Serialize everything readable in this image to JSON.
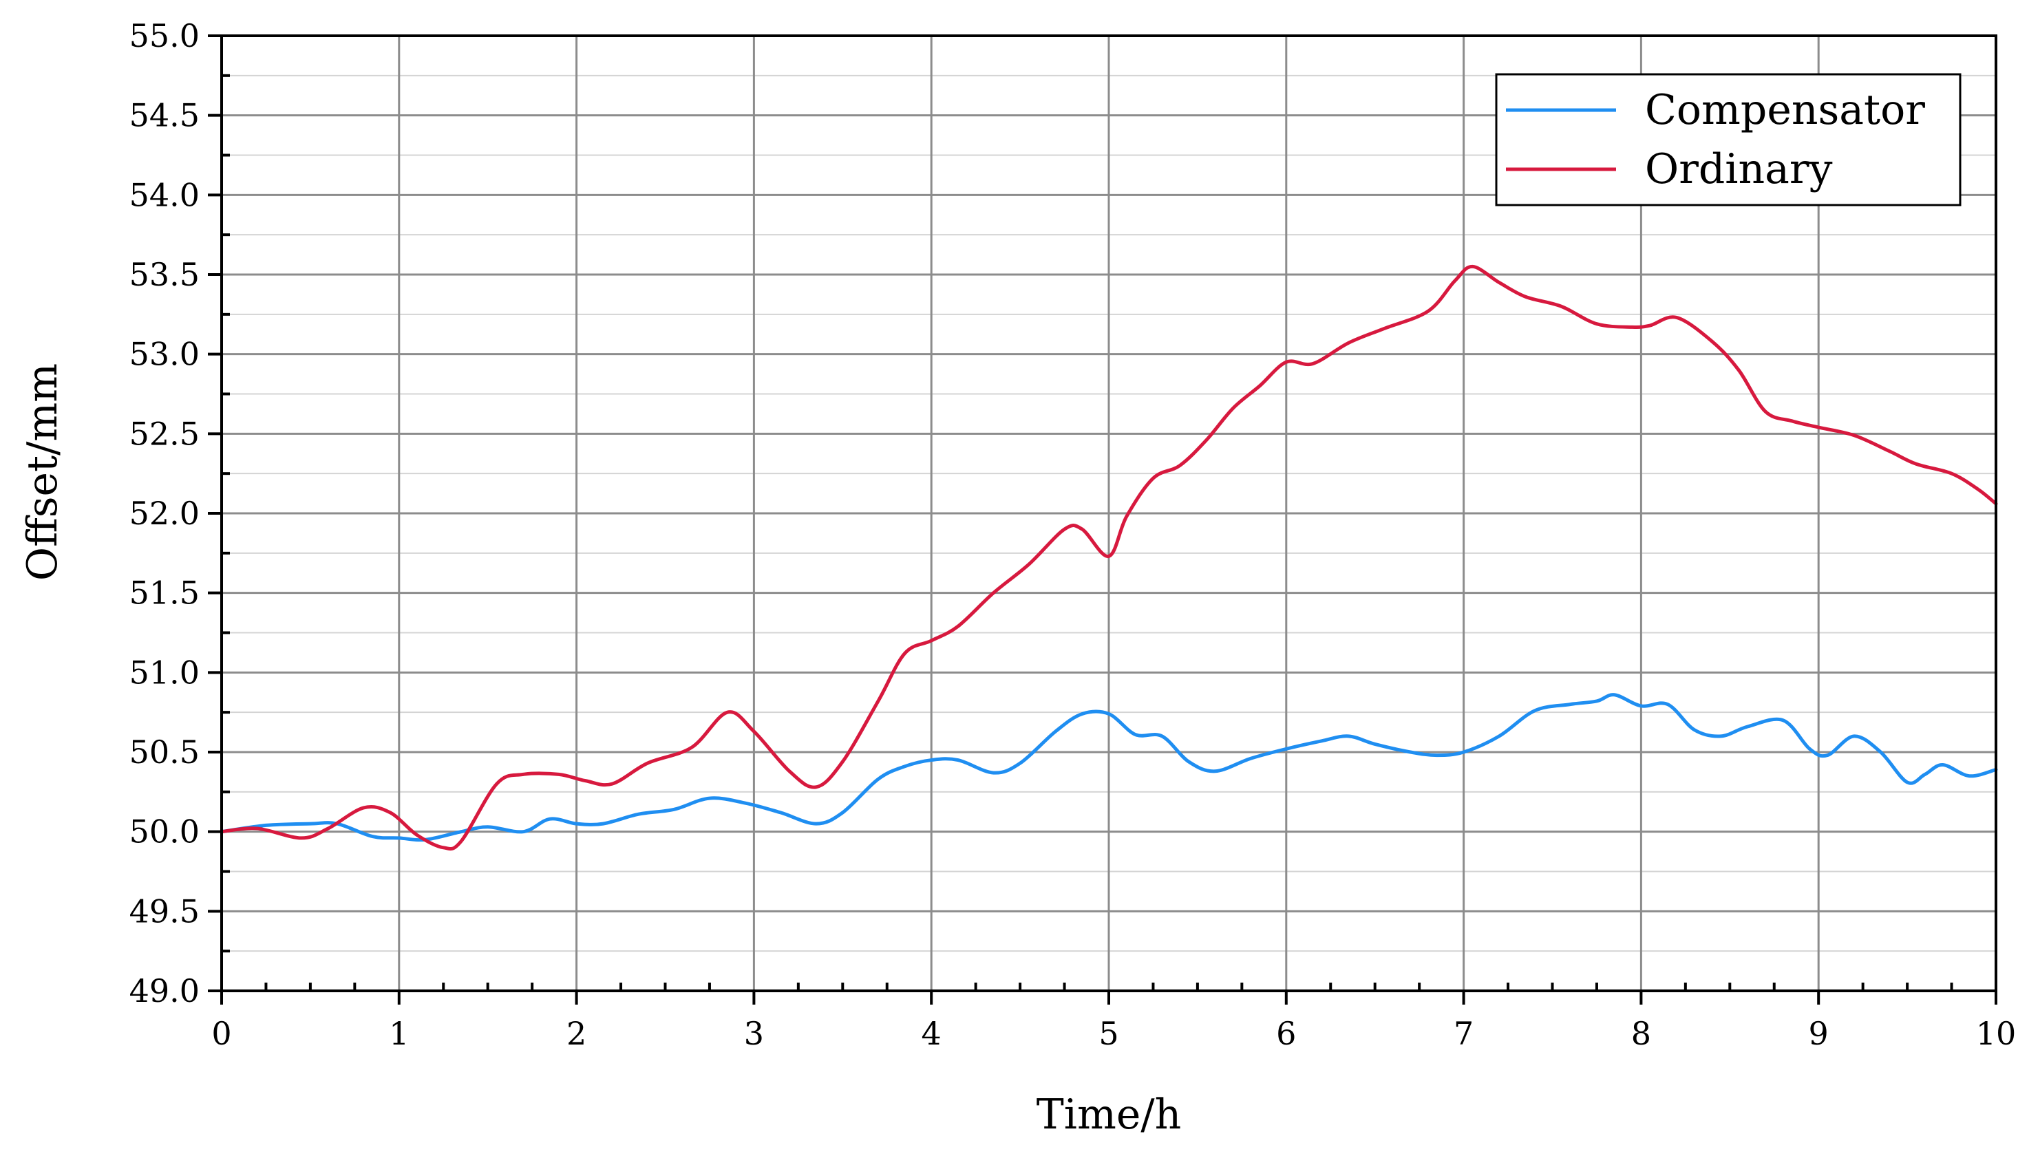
{
  "chart_data": {
    "type": "line",
    "title": "",
    "xlabel": "Time/h",
    "ylabel": "Offset/mm",
    "xlim": [
      0,
      10
    ],
    "ylim": [
      49.0,
      55.0
    ],
    "x_ticks": [
      0,
      1,
      2,
      3,
      4,
      5,
      6,
      7,
      8,
      9,
      10
    ],
    "x_tick_labels": [
      "0",
      "1",
      "2",
      "3",
      "4",
      "5",
      "6",
      "7",
      "8",
      "9",
      "10"
    ],
    "y_ticks": [
      49.0,
      49.5,
      50.0,
      50.5,
      51.0,
      51.5,
      52.0,
      52.5,
      53.0,
      53.5,
      54.0,
      54.5,
      55.0
    ],
    "y_tick_labels": [
      "49.0",
      "49.5",
      "50.0",
      "50.5",
      "51.0",
      "51.5",
      "52.0",
      "52.5",
      "53.0",
      "53.5",
      "54.0",
      "54.5",
      "55.0"
    ],
    "grid": true,
    "legend_position": "top-right",
    "series": [
      {
        "name": "Compensator",
        "color": "#1f8ef1",
        "points": [
          [
            0,
            50.0
          ],
          [
            0.25,
            50.04
          ],
          [
            0.5,
            50.05
          ],
          [
            0.65,
            50.05
          ],
          [
            0.85,
            49.97
          ],
          [
            1.0,
            49.96
          ],
          [
            1.15,
            49.95
          ],
          [
            1.35,
            50.0
          ],
          [
            1.5,
            50.03
          ],
          [
            1.7,
            50.0
          ],
          [
            1.85,
            50.08
          ],
          [
            2.0,
            50.05
          ],
          [
            2.15,
            50.05
          ],
          [
            2.35,
            50.11
          ],
          [
            2.55,
            50.14
          ],
          [
            2.75,
            50.21
          ],
          [
            2.95,
            50.18
          ],
          [
            3.15,
            50.12
          ],
          [
            3.35,
            50.05
          ],
          [
            3.5,
            50.12
          ],
          [
            3.7,
            50.33
          ],
          [
            3.85,
            50.41
          ],
          [
            4.0,
            50.45
          ],
          [
            4.15,
            50.45
          ],
          [
            4.35,
            50.37
          ],
          [
            4.5,
            50.43
          ],
          [
            4.7,
            50.63
          ],
          [
            4.85,
            50.74
          ],
          [
            5.0,
            50.74
          ],
          [
            5.15,
            50.61
          ],
          [
            5.3,
            50.6
          ],
          [
            5.45,
            50.44
          ],
          [
            5.6,
            50.38
          ],
          [
            5.8,
            50.46
          ],
          [
            6.0,
            50.52
          ],
          [
            6.2,
            50.57
          ],
          [
            6.35,
            50.6
          ],
          [
            6.5,
            50.55
          ],
          [
            6.7,
            50.5
          ],
          [
            6.85,
            50.48
          ],
          [
            7.0,
            50.5
          ],
          [
            7.2,
            50.6
          ],
          [
            7.4,
            50.76
          ],
          [
            7.6,
            50.8
          ],
          [
            7.75,
            50.82
          ],
          [
            7.85,
            50.86
          ],
          [
            8.0,
            50.79
          ],
          [
            8.15,
            50.8
          ],
          [
            8.3,
            50.64
          ],
          [
            8.45,
            50.6
          ],
          [
            8.6,
            50.66
          ],
          [
            8.8,
            50.7
          ],
          [
            8.95,
            50.52
          ],
          [
            9.05,
            50.48
          ],
          [
            9.2,
            50.6
          ],
          [
            9.35,
            50.5
          ],
          [
            9.5,
            50.31
          ],
          [
            9.6,
            50.36
          ],
          [
            9.7,
            50.42
          ],
          [
            9.85,
            50.35
          ],
          [
            10.0,
            50.39
          ]
        ]
      },
      {
        "name": "Ordinary",
        "color": "#d7193e",
        "points": [
          [
            0,
            50.0
          ],
          [
            0.2,
            50.02
          ],
          [
            0.45,
            49.96
          ],
          [
            0.6,
            50.02
          ],
          [
            0.8,
            50.15
          ],
          [
            0.95,
            50.12
          ],
          [
            1.1,
            49.98
          ],
          [
            1.25,
            49.9
          ],
          [
            1.35,
            49.94
          ],
          [
            1.55,
            50.3
          ],
          [
            1.7,
            50.36
          ],
          [
            1.9,
            50.36
          ],
          [
            2.05,
            50.32
          ],
          [
            2.2,
            50.3
          ],
          [
            2.4,
            50.43
          ],
          [
            2.65,
            50.53
          ],
          [
            2.85,
            50.75
          ],
          [
            3.0,
            50.63
          ],
          [
            3.2,
            50.38
          ],
          [
            3.35,
            50.28
          ],
          [
            3.5,
            50.44
          ],
          [
            3.7,
            50.82
          ],
          [
            3.85,
            51.12
          ],
          [
            4.0,
            51.2
          ],
          [
            4.15,
            51.29
          ],
          [
            4.35,
            51.5
          ],
          [
            4.55,
            51.68
          ],
          [
            4.75,
            51.9
          ],
          [
            4.85,
            51.9
          ],
          [
            5.0,
            51.73
          ],
          [
            5.1,
            51.98
          ],
          [
            5.25,
            52.22
          ],
          [
            5.4,
            52.3
          ],
          [
            5.55,
            52.46
          ],
          [
            5.7,
            52.66
          ],
          [
            5.85,
            52.8
          ],
          [
            6.0,
            52.95
          ],
          [
            6.15,
            52.94
          ],
          [
            6.35,
            53.07
          ],
          [
            6.55,
            53.16
          ],
          [
            6.8,
            53.27
          ],
          [
            6.95,
            53.46
          ],
          [
            7.05,
            53.55
          ],
          [
            7.2,
            53.45
          ],
          [
            7.35,
            53.36
          ],
          [
            7.55,
            53.3
          ],
          [
            7.75,
            53.19
          ],
          [
            7.95,
            53.17
          ],
          [
            8.05,
            53.18
          ],
          [
            8.2,
            53.23
          ],
          [
            8.4,
            53.08
          ],
          [
            8.55,
            52.9
          ],
          [
            8.7,
            52.64
          ],
          [
            8.85,
            52.58
          ],
          [
            9.0,
            52.54
          ],
          [
            9.2,
            52.49
          ],
          [
            9.4,
            52.39
          ],
          [
            9.55,
            52.31
          ],
          [
            9.75,
            52.25
          ],
          [
            9.9,
            52.15
          ],
          [
            10.0,
            52.06
          ]
        ]
      }
    ]
  }
}
